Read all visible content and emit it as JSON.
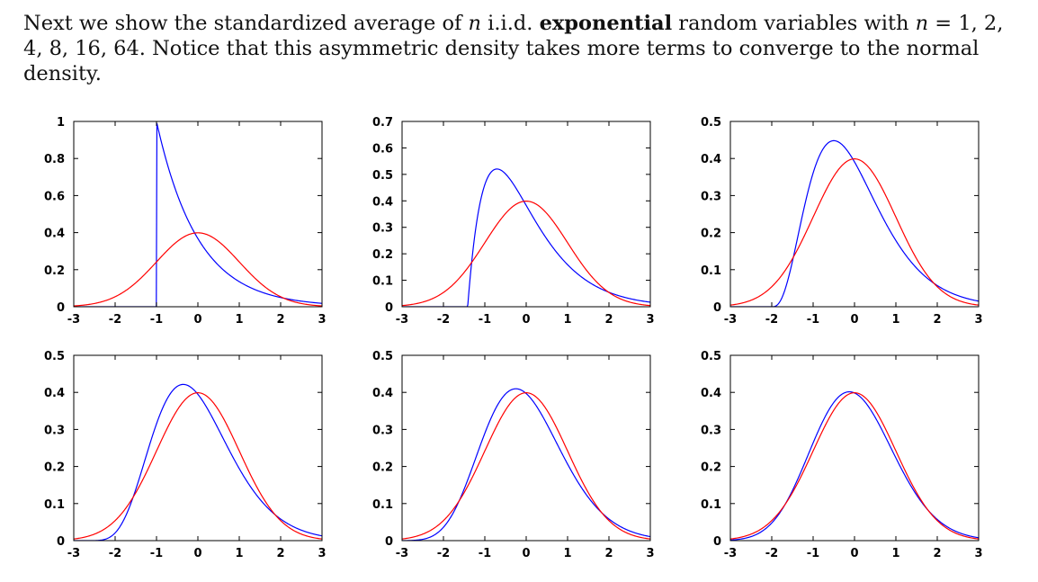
{
  "intro": {
    "p1": "Next we show the standardized average of ",
    "n1": "n",
    "p2": " i.i.d. ",
    "bold": "exponential",
    "p3": " random variables with ",
    "n2": "n",
    "p4": " = 1, 2, 4, 8, 16, 64. Notice that this asymmetric density takes more terms to converge to the normal density."
  },
  "colors": {
    "exponential": "#0000ff",
    "normal": "#ff0000",
    "axis": "#000000"
  },
  "chart_data": [
    {
      "type": "line",
      "n": 1,
      "xlim": [
        -3,
        3
      ],
      "ylim": [
        0,
        1
      ],
      "x_ticks": [
        -3,
        -2,
        -1,
        0,
        1,
        2,
        3
      ],
      "y_ticks": [
        0,
        0.2,
        0.4,
        0.6,
        0.8,
        1
      ],
      "x_tick_labels": [
        "-3",
        "-2",
        "-1",
        "0",
        "1",
        "2",
        "3"
      ],
      "y_tick_labels": [
        "0",
        "0.2",
        "0.4",
        "0.6",
        "0.8",
        "1"
      ],
      "grid": false,
      "series_colors": [
        "#0000ff",
        "#ff0000"
      ]
    },
    {
      "type": "line",
      "n": 2,
      "xlim": [
        -3,
        3
      ],
      "ylim": [
        0,
        0.7
      ],
      "x_ticks": [
        -3,
        -2,
        -1,
        0,
        1,
        2,
        3
      ],
      "y_ticks": [
        0,
        0.1,
        0.2,
        0.3,
        0.4,
        0.5,
        0.6,
        0.7
      ],
      "x_tick_labels": [
        "-3",
        "-2",
        "-1",
        "0",
        "1",
        "2",
        "3"
      ],
      "y_tick_labels": [
        "0",
        "0.1",
        "0.2",
        "0.3",
        "0.4",
        "0.5",
        "0.6",
        "0.7"
      ],
      "grid": false,
      "series_colors": [
        "#0000ff",
        "#ff0000"
      ]
    },
    {
      "type": "line",
      "n": 4,
      "xlim": [
        -3,
        3
      ],
      "ylim": [
        0,
        0.5
      ],
      "x_ticks": [
        -3,
        -2,
        -1,
        0,
        1,
        2,
        3
      ],
      "y_ticks": [
        0,
        0.1,
        0.2,
        0.3,
        0.4,
        0.5
      ],
      "x_tick_labels": [
        "-3",
        "-2",
        "-1",
        "0",
        "1",
        "2",
        "3"
      ],
      "y_tick_labels": [
        "0",
        "0.1",
        "0.2",
        "0.3",
        "0.4",
        "0.5"
      ],
      "grid": false,
      "series_colors": [
        "#0000ff",
        "#ff0000"
      ]
    },
    {
      "type": "line",
      "n": 8,
      "xlim": [
        -3,
        3
      ],
      "ylim": [
        0,
        0.5
      ],
      "x_ticks": [
        -3,
        -2,
        -1,
        0,
        1,
        2,
        3
      ],
      "y_ticks": [
        0,
        0.1,
        0.2,
        0.3,
        0.4,
        0.5
      ],
      "x_tick_labels": [
        "-3",
        "-2",
        "-1",
        "0",
        "1",
        "2",
        "3"
      ],
      "y_tick_labels": [
        "0",
        "0.1",
        "0.2",
        "0.3",
        "0.4",
        "0.5"
      ],
      "grid": false,
      "series_colors": [
        "#0000ff",
        "#ff0000"
      ]
    },
    {
      "type": "line",
      "n": 16,
      "xlim": [
        -3,
        3
      ],
      "ylim": [
        0,
        0.5
      ],
      "x_ticks": [
        -3,
        -2,
        -1,
        0,
        1,
        2,
        3
      ],
      "y_ticks": [
        0,
        0.1,
        0.2,
        0.3,
        0.4,
        0.5
      ],
      "x_tick_labels": [
        "-3",
        "-2",
        "-1",
        "0",
        "1",
        "2",
        "3"
      ],
      "y_tick_labels": [
        "0",
        "0.1",
        "0.2",
        "0.3",
        "0.4",
        "0.5"
      ],
      "grid": false,
      "series_colors": [
        "#0000ff",
        "#ff0000"
      ]
    },
    {
      "type": "line",
      "n": 64,
      "xlim": [
        -3,
        3
      ],
      "ylim": [
        0,
        0.5
      ],
      "x_ticks": [
        -3,
        -2,
        -1,
        0,
        1,
        2,
        3
      ],
      "y_ticks": [
        0,
        0.1,
        0.2,
        0.3,
        0.4,
        0.5
      ],
      "x_tick_labels": [
        "-3",
        "-2",
        "-1",
        "0",
        "1",
        "2",
        "3"
      ],
      "y_tick_labels": [
        "0",
        "0.1",
        "0.2",
        "0.3",
        "0.4",
        "0.5"
      ],
      "grid": false,
      "series_colors": [
        "#0000ff",
        "#ff0000"
      ]
    }
  ]
}
